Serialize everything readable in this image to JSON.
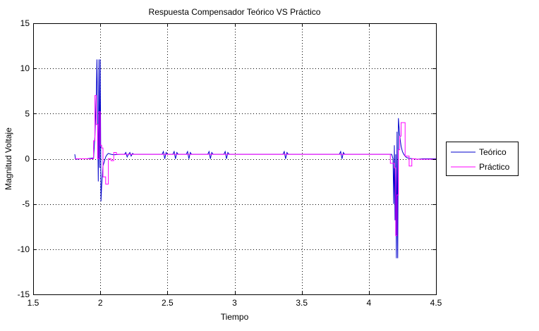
{
  "chart_data": {
    "type": "line",
    "title": "Respuesta Compensador Teórico VS Práctico",
    "xlabel": "Tiempo",
    "ylabel": "Magnitud Voltaje",
    "xlim": [
      1.5,
      4.5
    ],
    "ylim": [
      -15,
      15
    ],
    "xticks": [
      1.5,
      2,
      2.5,
      3,
      3.5,
      4,
      4.5
    ],
    "xtick_labels": [
      "1.5",
      "2",
      "2.5",
      "3",
      "3.5",
      "4",
      "4.5"
    ],
    "yticks": [
      -15,
      -10,
      -5,
      0,
      5,
      10,
      15
    ],
    "ytick_labels": [
      "-15",
      "-10",
      "-5",
      "0",
      "5",
      "10",
      "15"
    ],
    "grid": true,
    "legend_position": "outside-right",
    "series": [
      {
        "name": "Teórico",
        "color": "#0000cc",
        "x": [
          1.81,
          1.815,
          1.82,
          1.85,
          1.9,
          1.95,
          1.96,
          1.97,
          1.975,
          1.98,
          1.985,
          1.99,
          1.995,
          2.0,
          2.005,
          2.01,
          2.015,
          2.02,
          2.03,
          2.04,
          2.05,
          2.06,
          2.08,
          2.1,
          2.15,
          2.18,
          2.19,
          2.2,
          2.21,
          2.22,
          2.23,
          2.24,
          2.25,
          2.46,
          2.47,
          2.48,
          2.49,
          2.5,
          2.54,
          2.55,
          2.56,
          2.57,
          2.58,
          2.64,
          2.65,
          2.66,
          2.67,
          2.68,
          2.8,
          2.81,
          2.82,
          2.83,
          2.84,
          2.92,
          2.93,
          2.94,
          2.95,
          2.96,
          3.36,
          3.37,
          3.38,
          3.39,
          3.4,
          3.78,
          3.79,
          3.8,
          3.81,
          3.82,
          4.17,
          4.18,
          4.185,
          4.19,
          4.195,
          4.2,
          4.205,
          4.21,
          4.215,
          4.22,
          4.225,
          4.23,
          4.24,
          4.25,
          4.26,
          4.27,
          4.28,
          4.3,
          4.33,
          4.36,
          4.4,
          4.45,
          4.5
        ],
        "y": [
          0.5,
          0.0,
          -0.05,
          0.0,
          0.0,
          0.1,
          2.5,
          7.0,
          11.0,
          5.0,
          -2.5,
          11.0,
          -1.0,
          11.0,
          -4.7,
          -3.0,
          -2.0,
          -0.8,
          -0.3,
          0.2,
          0.45,
          0.6,
          0.5,
          0.45,
          0.5,
          0.5,
          0.7,
          0.2,
          0.5,
          0.7,
          0.3,
          0.6,
          0.5,
          0.5,
          0.8,
          0.0,
          0.7,
          0.5,
          0.5,
          0.8,
          0.0,
          0.7,
          0.5,
          0.5,
          0.8,
          0.0,
          0.7,
          0.5,
          0.5,
          0.8,
          0.0,
          0.7,
          0.5,
          0.5,
          0.8,
          0.0,
          0.7,
          0.5,
          0.5,
          0.8,
          0.0,
          0.7,
          0.5,
          0.5,
          0.8,
          0.0,
          0.7,
          0.5,
          0.5,
          0.0,
          -5.0,
          1.5,
          -6.8,
          0.5,
          -11.0,
          3.0,
          -11.0,
          4.5,
          3.5,
          2.5,
          1.4,
          0.8,
          0.5,
          0.3,
          0.15,
          0.05,
          0.0,
          -0.05,
          0.0,
          0.0,
          0.0
        ]
      },
      {
        "name": "Práctico",
        "color": "#ff00ff",
        "x": [
          1.81,
          1.95,
          1.95,
          1.96,
          1.96,
          1.97,
          1.97,
          1.98,
          1.98,
          1.99,
          1.99,
          2.0,
          2.0,
          2.01,
          2.01,
          2.02,
          2.02,
          2.04,
          2.04,
          2.06,
          2.06,
          2.08,
          2.08,
          2.1,
          2.1,
          2.12,
          2.12,
          2.15,
          2.15,
          4.16,
          4.16,
          4.19,
          4.19,
          4.2,
          4.2,
          4.21,
          4.21,
          4.22,
          4.22,
          4.23,
          4.23,
          4.24,
          4.24,
          4.27,
          4.27,
          4.3,
          4.3,
          4.32,
          4.32,
          4.35,
          4.35,
          4.5
        ],
        "y": [
          0.0,
          0.0,
          2.0,
          2.0,
          7.0,
          7.0,
          3.8,
          3.8,
          0.0,
          0.0,
          5.2,
          5.2,
          1.5,
          1.5,
          1.2,
          1.2,
          -2.0,
          -2.0,
          -2.8,
          -2.8,
          0.0,
          0.0,
          -0.2,
          -0.2,
          0.7,
          0.7,
          0.5,
          0.5,
          0.5,
          0.5,
          -0.5,
          -0.5,
          -1.0,
          -1.0,
          -8.5,
          -8.5,
          -4.0,
          -4.0,
          1.0,
          1.0,
          2.5,
          2.5,
          4.0,
          4.0,
          0.3,
          0.3,
          -0.8,
          -0.8,
          0.0,
          0.0,
          -0.05,
          -0.05
        ]
      }
    ]
  }
}
